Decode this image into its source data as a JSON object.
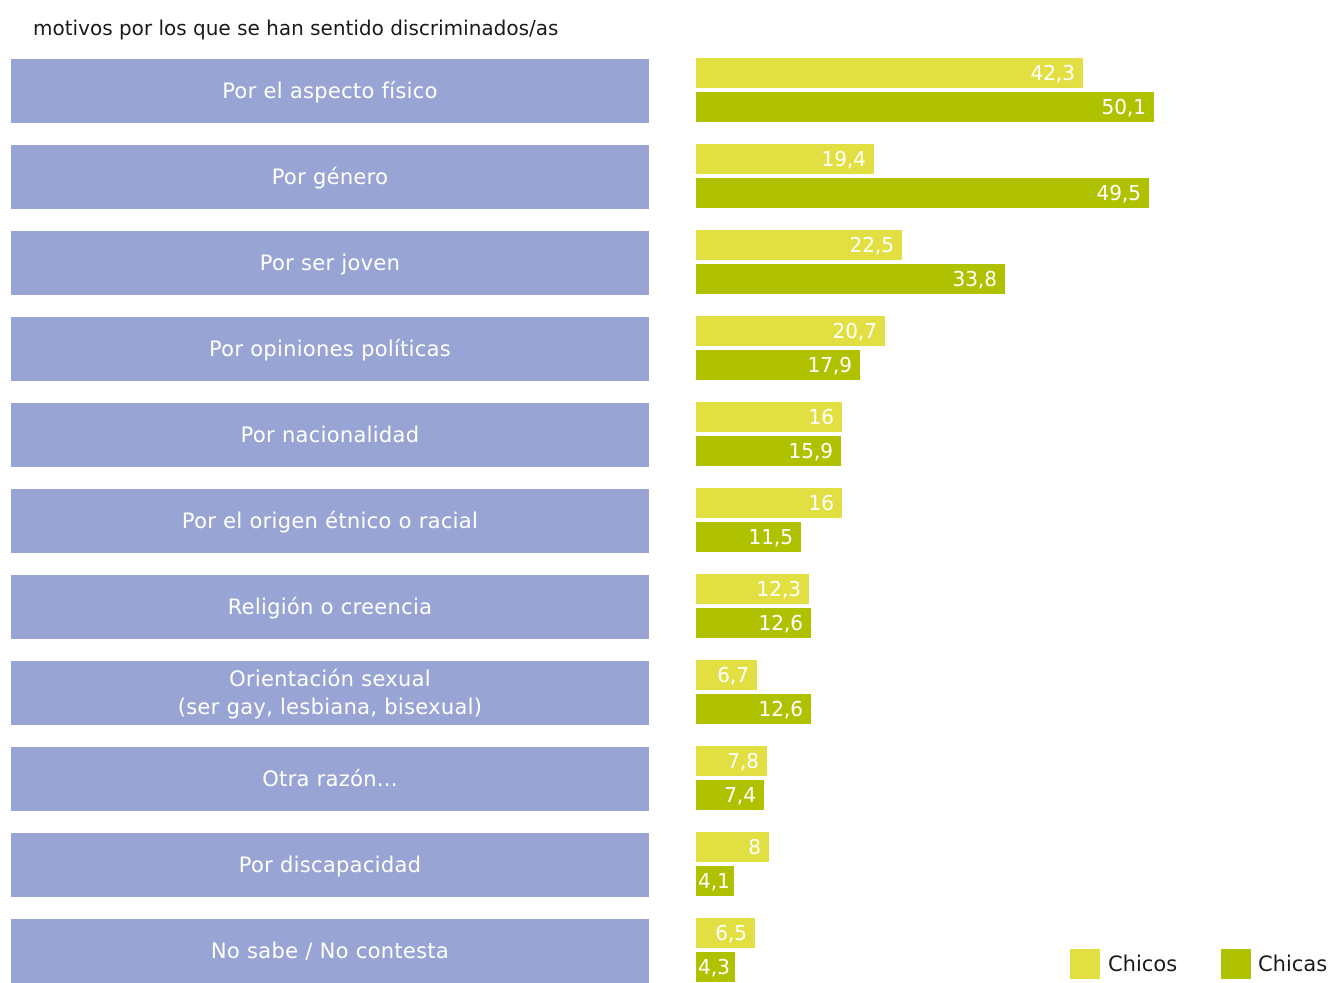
{
  "title": "motivos por los que se han sentido discriminados/as",
  "colors": {
    "category_box": "#98a4d3",
    "chicos": "#e2df42",
    "chicas": "#b0c100",
    "label_outside": "#a6b800"
  },
  "chart_data": {
    "type": "bar",
    "orientation": "horizontal",
    "categories": [
      [
        "Por el aspecto físico"
      ],
      [
        "Por género"
      ],
      [
        "Por ser joven"
      ],
      [
        "Por opiniones políticas"
      ],
      [
        "Por nacionalidad"
      ],
      [
        "Por el origen étnico o racial"
      ],
      [
        "Religión o creencia"
      ],
      [
        "Orientación sexual",
        "(ser gay, lesbiana, bisexual)"
      ],
      [
        "Otra razón..."
      ],
      [
        "Por discapacidad"
      ],
      [
        "No sabe / No contesta"
      ]
    ],
    "series": [
      {
        "name": "Chicos",
        "values": [
          42.3,
          19.4,
          22.5,
          20.7,
          16,
          16,
          12.3,
          6.7,
          7.8,
          8,
          6.5
        ],
        "labels": [
          "42,3",
          "19,4",
          "22,5",
          "20,7",
          "16",
          "16",
          "12,3",
          "6,7",
          "7,8",
          "8",
          "6,5"
        ]
      },
      {
        "name": "Chicas",
        "values": [
          50.1,
          49.5,
          33.8,
          17.9,
          15.9,
          11.5,
          12.6,
          12.6,
          7.4,
          4.1,
          4.3
        ],
        "labels": [
          "50,1",
          "49,5",
          "33,8",
          "17,9",
          "15,9",
          "11,5",
          "12,6",
          "12,6",
          "7,4",
          "4,1",
          "4,3"
        ]
      }
    ],
    "xlim": [
      0,
      100
    ],
    "grid": false,
    "legend_position": "bottom-right"
  },
  "legend": {
    "chicos": "Chicos",
    "chicas": "Chicas"
  }
}
